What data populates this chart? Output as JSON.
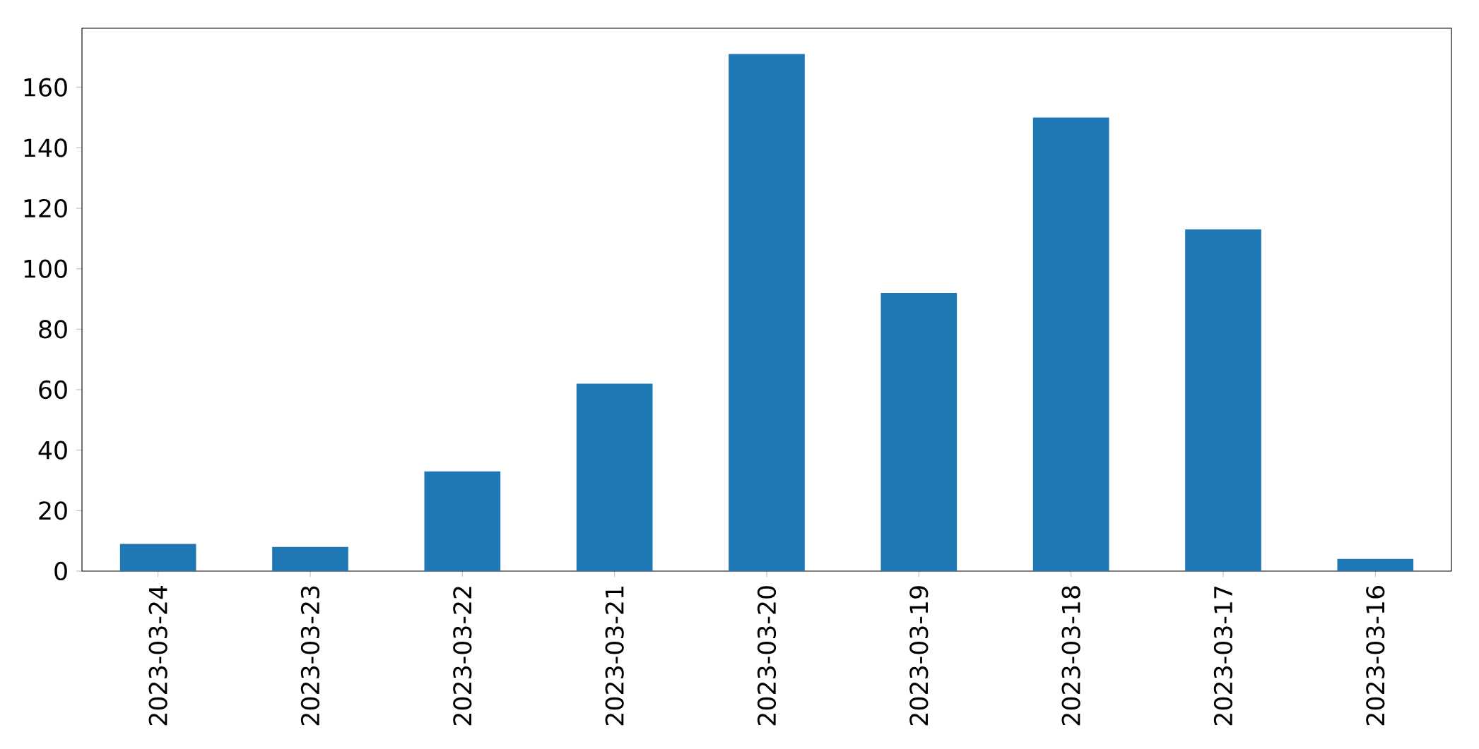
{
  "chart_data": {
    "type": "bar",
    "categories": [
      "2023-03-24",
      "2023-03-23",
      "2023-03-22",
      "2023-03-21",
      "2023-03-20",
      "2023-03-19",
      "2023-03-18",
      "2023-03-17",
      "2023-03-16"
    ],
    "values": [
      9,
      8,
      33,
      62,
      171,
      92,
      150,
      113,
      4
    ],
    "color": "#1f77b4",
    "ylim": [
      0,
      179.55
    ],
    "yticks": [
      0,
      20,
      40,
      60,
      80,
      100,
      120,
      140,
      160
    ]
  }
}
